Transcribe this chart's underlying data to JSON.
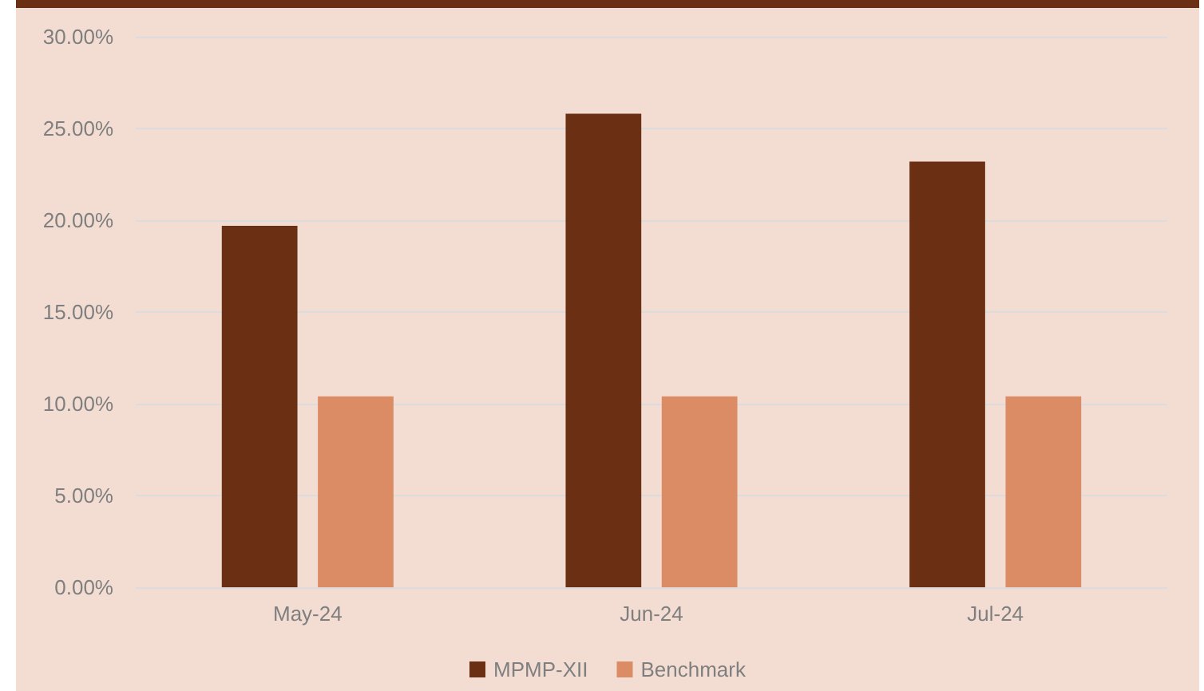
{
  "chart_data": {
    "type": "bar",
    "categories": [
      "May-24",
      "Jun-24",
      "Jul-24"
    ],
    "series": [
      {
        "name": "MPMP-XII",
        "color": "#6b3014",
        "values": [
          19.7,
          25.8,
          23.2
        ]
      },
      {
        "name": "Benchmark",
        "color": "#dc8c64",
        "values": [
          10.4,
          10.4,
          10.4
        ]
      }
    ],
    "ylim": [
      0,
      30
    ],
    "yticks": [
      {
        "value": 0,
        "label": "0.00%"
      },
      {
        "value": 5,
        "label": "5.00%"
      },
      {
        "value": 10,
        "label": "10.00%"
      },
      {
        "value": 15,
        "label": "15.00%"
      },
      {
        "value": 20,
        "label": "20.00%"
      },
      {
        "value": 25,
        "label": "25.00%"
      },
      {
        "value": 30,
        "label": "30.00%"
      }
    ],
    "grid": "y",
    "legend": "bottom"
  }
}
